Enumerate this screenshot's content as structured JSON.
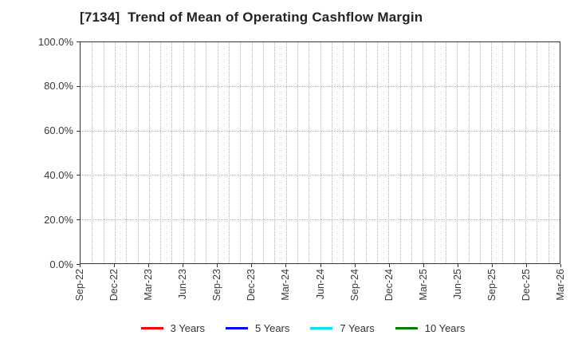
{
  "chart_data": {
    "type": "line",
    "title": "[7134]  Trend of Mean of Operating Cashflow Margin",
    "x_tick_labels": [
      "Sep-22",
      "Dec-22",
      "Mar-23",
      "Jun-23",
      "Sep-23",
      "Dec-23",
      "Mar-24",
      "Jun-24",
      "Sep-24",
      "Dec-24",
      "Mar-25",
      "Jun-25",
      "Sep-25",
      "Dec-25",
      "Mar-26"
    ],
    "y_tick_labels": [
      "100.0%",
      "80.0%",
      "60.0%",
      "40.0%",
      "20.0%",
      "0.0%"
    ],
    "ylim": [
      0,
      100
    ],
    "y_unit": "%",
    "y_gridline_values": [
      20,
      40,
      60,
      80
    ],
    "x_months_span": 42,
    "x_gridline_interval_months": 1,
    "x_tick_interval_months": 3,
    "grid": true,
    "legend_position": "bottom",
    "series": [
      {
        "name": "3 Years",
        "color": "#ff0000",
        "values": []
      },
      {
        "name": "5 Years",
        "color": "#0000ff",
        "values": []
      },
      {
        "name": "7 Years",
        "color": "#00e5ee",
        "values": []
      },
      {
        "name": "10 Years",
        "color": "#008000",
        "values": []
      }
    ]
  }
}
